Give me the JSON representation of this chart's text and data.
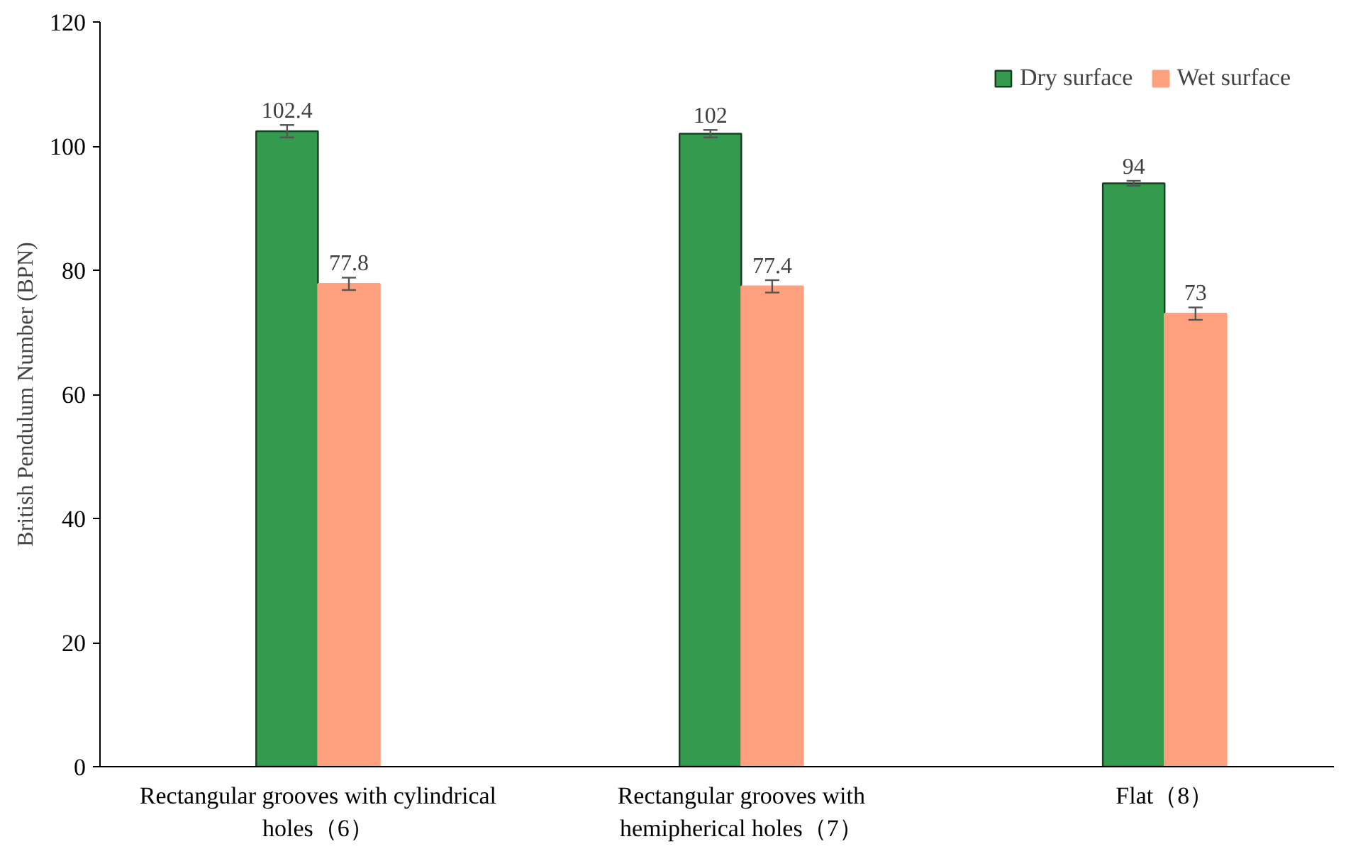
{
  "chart_data": {
    "type": "bar",
    "ylabel": "British Pendulum Number (BPN)",
    "categories": [
      "Rectangular grooves with cylindrical holes（6）",
      "Rectangular grooves with hemipherical holes（7）",
      "Flat（8）"
    ],
    "series": [
      {
        "name": "Dry surface",
        "color": "#339a4e",
        "values": [
          102.4,
          102,
          94
        ],
        "errors": [
          1.0,
          0.6,
          0.4
        ]
      },
      {
        "name": "Wet surface",
        "color": "#ffa07e",
        "values": [
          77.8,
          77.4,
          73
        ],
        "errors": [
          1.0,
          1.0,
          1.0
        ]
      }
    ],
    "ylim": [
      0,
      120
    ],
    "yticks": [
      0,
      20,
      40,
      60,
      80,
      100,
      120
    ],
    "data_labels": true,
    "grid": false,
    "legend": "top right"
  }
}
